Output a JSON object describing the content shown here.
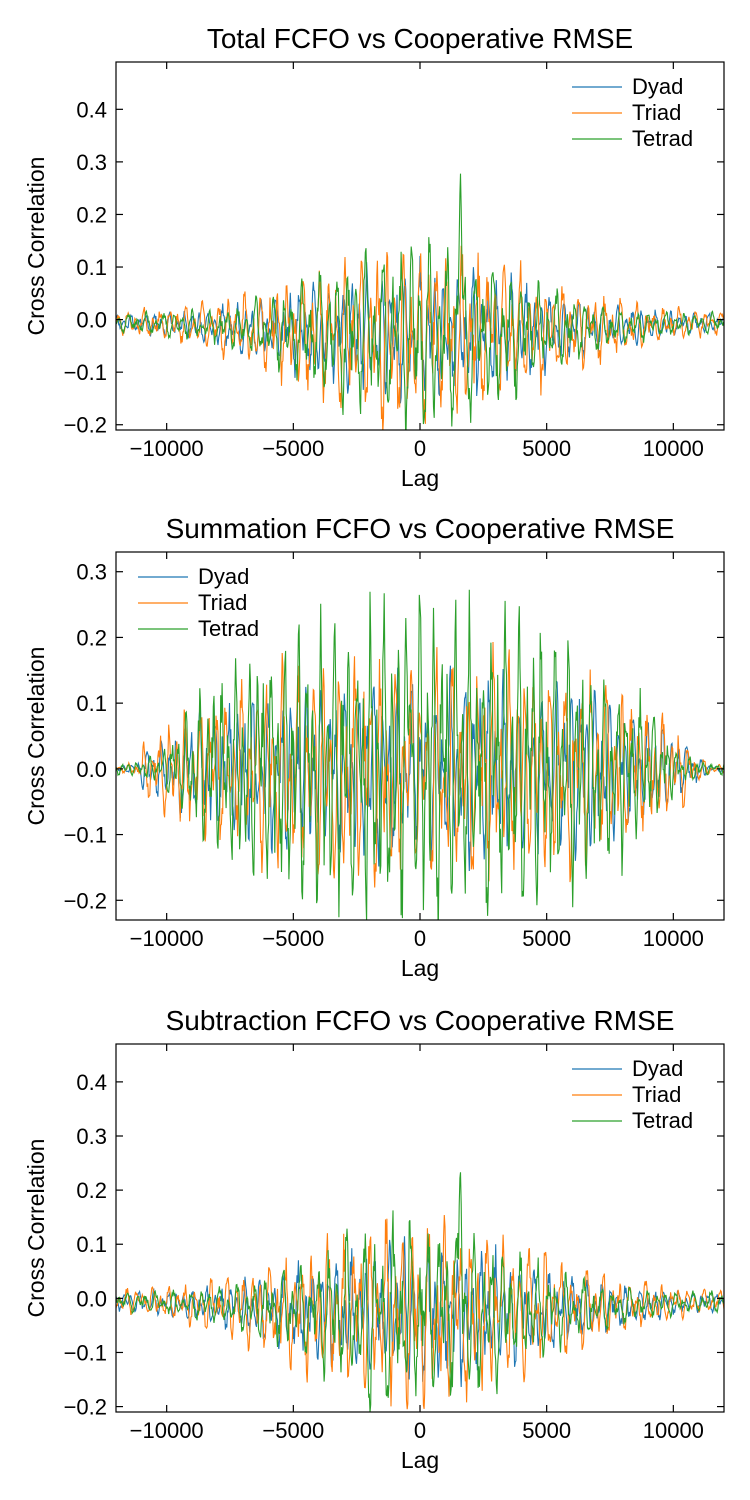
{
  "chart_data": [
    {
      "type": "line",
      "title": "Total FCFO vs Cooperative RMSE",
      "xlabel": "Lag",
      "ylabel": "Cross Correlation",
      "xlim": [
        -12000,
        12000
      ],
      "ylim": [
        -0.21,
        0.49
      ],
      "xticks": [
        -10000,
        -5000,
        0,
        5000,
        10000
      ],
      "xtick_labels": [
        "−10000",
        "−5000",
        "0",
        "5000",
        "10000"
      ],
      "yticks": [
        -0.2,
        -0.1,
        0.0,
        0.1,
        0.2,
        0.3,
        0.4
      ],
      "ytick_labels": [
        "−0.2",
        "−0.1",
        "0.0",
        "0.1",
        "0.2",
        "0.3",
        "0.4"
      ],
      "legend_position": "top-right",
      "series": [
        {
          "name": "Dyad",
          "color": "#1f77b4",
          "profile": "gauss",
          "amp": 0.12,
          "width": 6500,
          "peak": 0.0,
          "period": 300,
          "seed": 11
        },
        {
          "name": "Triad",
          "color": "#ff7f0e",
          "profile": "gauss",
          "amp": 0.16,
          "width": 6500,
          "peak": 0.0,
          "period": 330,
          "seed": 23
        },
        {
          "name": "Tetrad",
          "color": "#2ca02c",
          "profile": "gauss",
          "amp": 0.17,
          "width": 5200,
          "peak": 0.48,
          "peak_x": 1600,
          "period": 360,
          "seed": 37
        }
      ]
    },
    {
      "type": "line",
      "title": "Summation FCFO vs Cooperative RMSE",
      "xlabel": "Lag",
      "ylabel": "Cross Correlation",
      "xlim": [
        -12000,
        12000
      ],
      "ylim": [
        -0.23,
        0.33
      ],
      "xticks": [
        -10000,
        -5000,
        0,
        5000,
        10000
      ],
      "xtick_labels": [
        "−10000",
        "−5000",
        "0",
        "5000",
        "10000"
      ],
      "yticks": [
        -0.2,
        -0.1,
        0.0,
        0.1,
        0.2,
        0.3
      ],
      "ytick_labels": [
        "−0.2",
        "−0.1",
        "0.0",
        "0.1",
        "0.2",
        "0.3"
      ],
      "legend_position": "top-left",
      "series": [
        {
          "name": "Dyad",
          "color": "#1f77b4",
          "profile": "flat",
          "amp": 0.13,
          "width": 9500,
          "peak": 0.0,
          "period": 300,
          "seed": 51
        },
        {
          "name": "Triad",
          "color": "#ff7f0e",
          "profile": "flat",
          "amp": 0.16,
          "width": 9500,
          "peak": 0.0,
          "period": 320,
          "seed": 63
        },
        {
          "name": "Tetrad",
          "color": "#2ca02c",
          "profile": "flat",
          "amp": 0.22,
          "width": 8500,
          "peak": 0.32,
          "peak_x": -400,
          "period": 280,
          "seed": 77
        }
      ]
    },
    {
      "type": "line",
      "title": "Subtraction FCFO vs Cooperative RMSE",
      "xlabel": "Lag",
      "ylabel": "Cross Correlation",
      "xlim": [
        -12000,
        12000
      ],
      "ylim": [
        -0.21,
        0.47
      ],
      "xticks": [
        -10000,
        -5000,
        0,
        5000,
        10000
      ],
      "xtick_labels": [
        "−10000",
        "−5000",
        "0",
        "5000",
        "10000"
      ],
      "yticks": [
        -0.2,
        -0.1,
        0.0,
        0.1,
        0.2,
        0.3,
        0.4
      ],
      "ytick_labels": [
        "−0.2",
        "−0.1",
        "0.0",
        "0.1",
        "0.2",
        "0.3",
        "0.4"
      ],
      "legend_position": "top-right",
      "series": [
        {
          "name": "Dyad",
          "color": "#1f77b4",
          "profile": "gauss",
          "amp": 0.12,
          "width": 6500,
          "peak": 0.0,
          "period": 300,
          "seed": 91
        },
        {
          "name": "Triad",
          "color": "#ff7f0e",
          "profile": "gauss",
          "amp": 0.16,
          "width": 6500,
          "peak": 0.0,
          "period": 330,
          "seed": 103
        },
        {
          "name": "Tetrad",
          "color": "#2ca02c",
          "profile": "gauss",
          "amp": 0.17,
          "width": 5200,
          "peak": 0.46,
          "peak_x": 1600,
          "period": 360,
          "seed": 117
        }
      ]
    }
  ]
}
